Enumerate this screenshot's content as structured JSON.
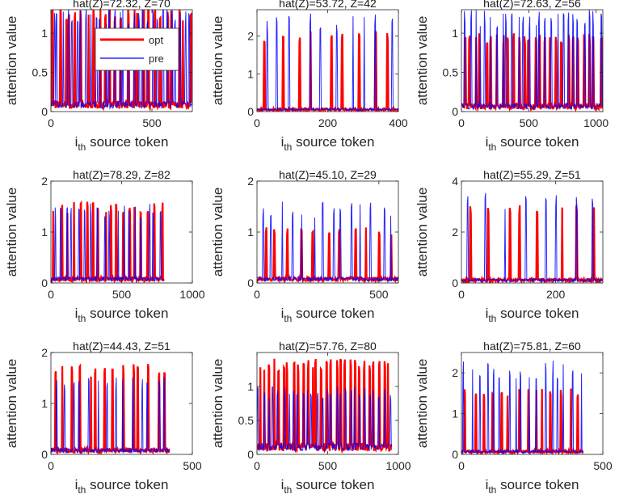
{
  "colors": {
    "opt": "#ff0000",
    "pre": "#0000ff",
    "axis": "#262626",
    "background": "#ffffff"
  },
  "legend": {
    "placement": "top-center of first panel",
    "entries": [
      "opt",
      "pre"
    ]
  },
  "chart_data": [
    {
      "type": "line",
      "title": "hat(Z)=72.32, Z=70",
      "xlabel_main": "i",
      "xlabel_sub": "th",
      "xlabel_rest": " source token",
      "ylabel": "attention value",
      "xlim": [
        0,
        700
      ],
      "ylim": [
        0,
        1.3
      ],
      "xticks": [
        0,
        500
      ],
      "yticks": [
        0,
        0.5,
        1
      ],
      "ytick_labels": [
        "0",
        "0.5",
        "1"
      ],
      "n_spikes_opt": 25,
      "n_spikes_pre": 30,
      "opt_peak": 1.35,
      "pre_peak": 1.35,
      "baseline": 0.08,
      "series": [
        {
          "name": "opt",
          "peak": 1.35
        },
        {
          "name": "pre",
          "peak": 1.35
        }
      ]
    },
    {
      "type": "line",
      "title": "hat(Z)=53.72, Z=42",
      "xlabel_main": "i",
      "xlabel_sub": "th",
      "xlabel_rest": " source token",
      "ylabel": "attention value",
      "xlim": [
        0,
        400
      ],
      "ylim": [
        0,
        2.7
      ],
      "xticks": [
        0,
        200,
        400
      ],
      "yticks": [
        0,
        1,
        2
      ],
      "ytick_labels": [
        "0",
        "1",
        "2"
      ],
      "n_spikes_opt": 9,
      "n_spikes_pre": 10,
      "opt_peak": 2.15,
      "pre_peak": 2.6,
      "baseline": 0.05,
      "series": [
        {
          "name": "opt",
          "peak": 2.15
        },
        {
          "name": "pre",
          "peak": 2.6
        }
      ]
    },
    {
      "type": "line",
      "title": "hat(Z)=72.63, Z=56",
      "xlabel_main": "i",
      "xlabel_sub": "th",
      "xlabel_rest": " source token",
      "ylabel": "attention value",
      "xlim": [
        0,
        1050
      ],
      "ylim": [
        0,
        1.3
      ],
      "xticks": [
        0,
        500,
        1000
      ],
      "yticks": [
        0,
        0.5,
        1
      ],
      "ytick_labels": [
        "0",
        "0.5",
        "1"
      ],
      "n_spikes_opt": 26,
      "n_spikes_pre": 26,
      "opt_peak": 1.0,
      "pre_peak": 1.3,
      "baseline": 0.06,
      "series": [
        {
          "name": "opt",
          "peak": 1.0
        },
        {
          "name": "pre",
          "peak": 1.3
        }
      ]
    },
    {
      "type": "line",
      "title": "hat(Z)=78.29, Z=82",
      "xlabel_main": "i",
      "xlabel_sub": "th",
      "xlabel_rest": " source token",
      "ylabel": "attention value",
      "xlim": [
        0,
        1000
      ],
      "ylim": [
        0,
        2
      ],
      "xticks": [
        0,
        500,
        1000
      ],
      "yticks": [
        0,
        1,
        2
      ],
      "ytick_labels": [
        "0",
        "1",
        "2"
      ],
      "n_spikes_opt": 18,
      "n_spikes_pre": 18,
      "opt_peak": 1.6,
      "pre_peak": 1.58,
      "baseline": 0.07,
      "data_end": 800,
      "series": [
        {
          "name": "opt",
          "peak": 1.6
        },
        {
          "name": "pre",
          "peak": 1.58
        }
      ]
    },
    {
      "type": "line",
      "title": "hat(Z)=45.10, Z=29",
      "xlabel_main": "i",
      "xlabel_sub": "th",
      "xlabel_rest": " source token",
      "ylabel": "attention value",
      "xlim": [
        0,
        580
      ],
      "ylim": [
        0,
        2
      ],
      "xticks": [
        0,
        500
      ],
      "yticks": [
        0,
        1,
        2
      ],
      "ytick_labels": [
        "0",
        "1",
        "2"
      ],
      "n_spikes_opt": 11,
      "n_spikes_pre": 14,
      "opt_peak": 1.1,
      "pre_peak": 1.6,
      "baseline": 0.07,
      "series": [
        {
          "name": "opt",
          "peak": 1.1
        },
        {
          "name": "pre",
          "peak": 1.6
        }
      ]
    },
    {
      "type": "line",
      "title": "hat(Z)=55.29, Z=51",
      "xlabel_main": "i",
      "xlabel_sub": "th",
      "xlabel_rest": " source token",
      "ylabel": "attention value",
      "xlim": [
        0,
        300
      ],
      "ylim": [
        0,
        4
      ],
      "xticks": [
        0,
        200
      ],
      "yticks": [
        0,
        2,
        4
      ],
      "ytick_labels": [
        "0",
        "2",
        "4"
      ],
      "n_spikes_opt": 8,
      "n_spikes_pre": 8,
      "opt_peak": 3.1,
      "pre_peak": 3.55,
      "baseline": 0.1,
      "series": [
        {
          "name": "opt",
          "peak": 3.1
        },
        {
          "name": "pre",
          "peak": 3.55
        }
      ]
    },
    {
      "type": "line",
      "title": "hat(Z)=44.43, Z=51",
      "xlabel_main": "i",
      "xlabel_sub": "th",
      "xlabel_rest": " source token",
      "ylabel": "attention value",
      "xlim": [
        0,
        500
      ],
      "ylim": [
        0,
        2
      ],
      "xticks": [
        0,
        500
      ],
      "yticks": [
        0,
        1,
        2
      ],
      "ytick_labels": [
        "0",
        "1",
        "2"
      ],
      "n_spikes_opt": 14,
      "n_spikes_pre": 14,
      "opt_peak": 1.78,
      "pre_peak": 1.55,
      "baseline": 0.07,
      "data_end": 420,
      "series": [
        {
          "name": "opt",
          "peak": 1.78
        },
        {
          "name": "pre",
          "peak": 1.55
        }
      ]
    },
    {
      "type": "line",
      "title": "hat(Z)=57.76, Z=80",
      "xlabel_main": "i",
      "xlabel_sub": "th",
      "xlabel_rest": " source token",
      "ylabel": "attention value",
      "xlim": [
        0,
        1000
      ],
      "ylim": [
        0,
        1.5
      ],
      "xticks": [
        0,
        500,
        1000
      ],
      "yticks": [
        0,
        0.5,
        1
      ],
      "ytick_labels": [
        "0",
        "0.5",
        "1"
      ],
      "n_spikes_opt": 28,
      "n_spikes_pre": 28,
      "opt_peak": 1.42,
      "pre_peak": 1.0,
      "baseline": 0.1,
      "data_end": 950,
      "series": [
        {
          "name": "opt",
          "peak": 1.42
        },
        {
          "name": "pre",
          "peak": 1.0
        }
      ]
    },
    {
      "type": "line",
      "title": "hat(Z)=75.81, Z=60",
      "xlabel_main": "i",
      "xlabel_sub": "th",
      "xlabel_rest": " source token",
      "ylabel": "attention value",
      "xlim": [
        0,
        500
      ],
      "ylim": [
        0,
        2.5
      ],
      "xticks": [
        0,
        500
      ],
      "yticks": [
        0,
        1,
        2
      ],
      "ytick_labels": [
        "0",
        "1",
        "2"
      ],
      "n_spikes_opt": 14,
      "n_spikes_pre": 17,
      "opt_peak": 1.65,
      "pre_peak": 2.3,
      "baseline": 0.06,
      "data_end": 430,
      "series": [
        {
          "name": "opt",
          "peak": 1.65
        },
        {
          "name": "pre",
          "peak": 2.3
        }
      ]
    }
  ]
}
